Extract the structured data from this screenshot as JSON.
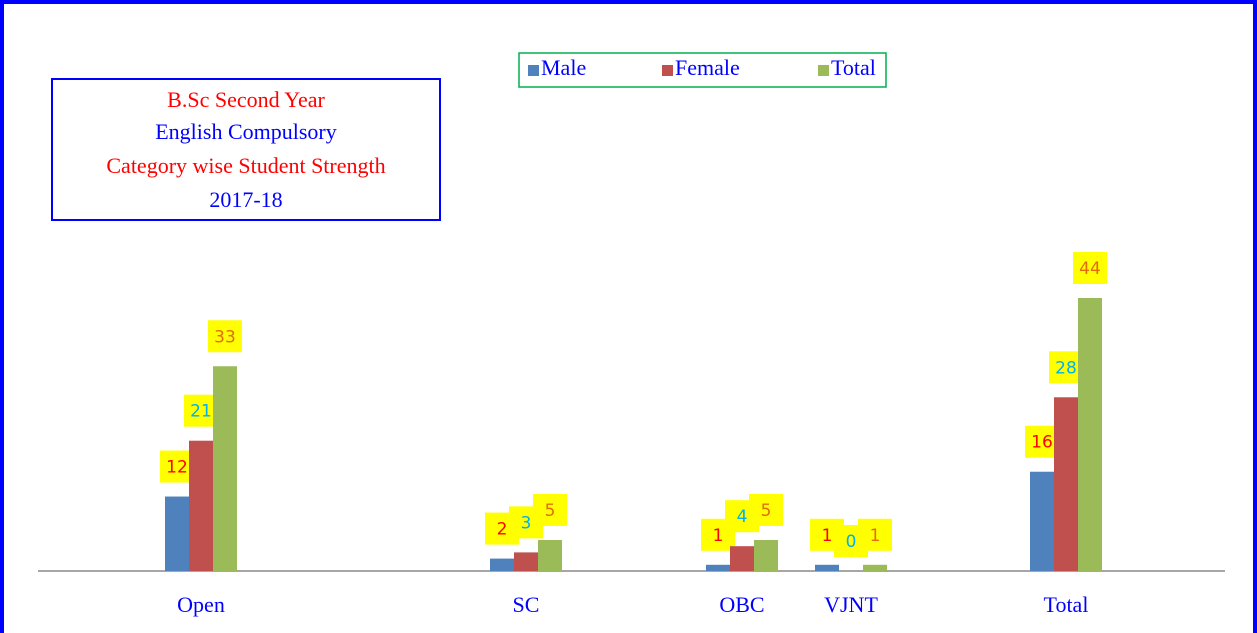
{
  "chart_data": {
    "type": "bar",
    "title_lines": [
      "B.Sc Second Year",
      "English Compulsory",
      "Category wise Student Strength",
      "2017-18"
    ],
    "categories": [
      "Open",
      "SC",
      "OBC",
      "VJNT",
      "Total"
    ],
    "series": [
      {
        "name": "Male",
        "color": "#4f81bd",
        "label_color": "#ff0000",
        "values": [
          12,
          2,
          1,
          1,
          16
        ]
      },
      {
        "name": "Female",
        "color": "#c0504d",
        "label_color": "#00b0f0",
        "values": [
          21,
          3,
          4,
          0,
          28
        ]
      },
      {
        "name": "Total",
        "color": "#9bbb59",
        "label_color": "#e46c0a",
        "values": [
          33,
          5,
          5,
          1,
          44
        ]
      }
    ],
    "legend": "top"
  }
}
